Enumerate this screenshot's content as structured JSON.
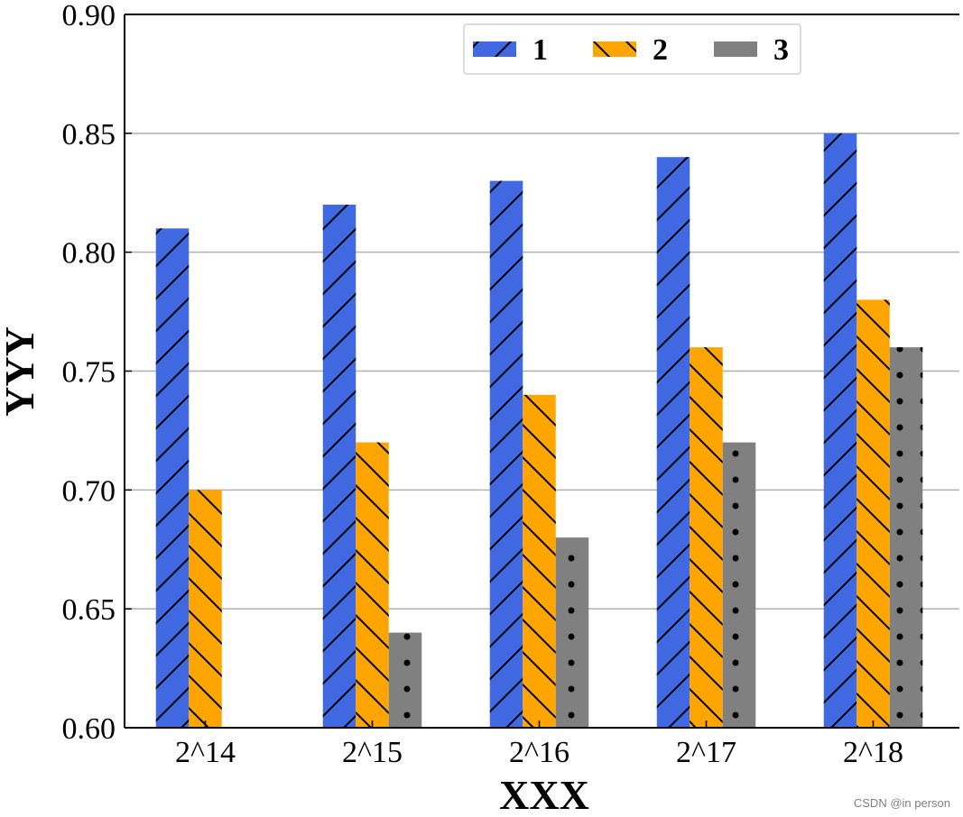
{
  "chart_data": {
    "type": "bar",
    "categories": [
      "2^14",
      "2^15",
      "2^16",
      "2^17",
      "2^18"
    ],
    "series": [
      {
        "name": "1",
        "values": [
          0.81,
          0.82,
          0.83,
          0.84,
          0.85
        ],
        "color": "#4169E1",
        "pattern": "forward-diagonal-hatch"
      },
      {
        "name": "2",
        "values": [
          0.7,
          0.72,
          0.74,
          0.76,
          0.78
        ],
        "color": "#FFA500",
        "pattern": "backward-diagonal-hatch"
      },
      {
        "name": "3",
        "values": [
          0.6,
          0.64,
          0.68,
          0.72,
          0.76
        ],
        "color": "#808080",
        "pattern": "dots"
      }
    ],
    "xlabel": "XXX",
    "ylabel": "YYY",
    "ylim": [
      0.6,
      0.9
    ],
    "yticks": [
      "0.60",
      "0.65",
      "0.70",
      "0.75",
      "0.80",
      "0.85",
      "0.90"
    ],
    "grid": "horizontal",
    "legend_position": "top-center"
  },
  "watermark": "CSDN @in person"
}
